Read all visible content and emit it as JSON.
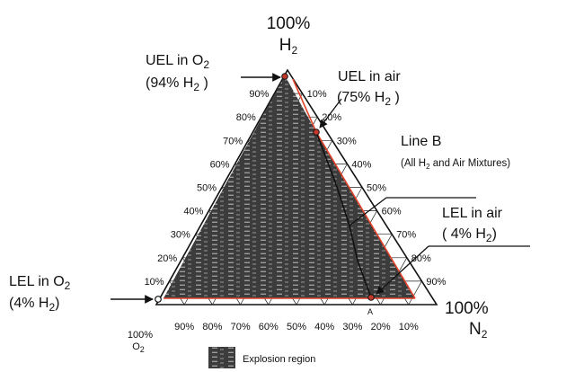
{
  "apex_top": {
    "pct": "100%",
    "species": "H",
    "sub": "2"
  },
  "apex_right": {
    "pct": "100%",
    "species": "N",
    "sub": "2"
  },
  "apex_left": {
    "pct": "100%",
    "species": "O",
    "sub": "2"
  },
  "left_ticks": [
    "90%",
    "80%",
    "70%",
    "60%",
    "50%",
    "40%",
    "30%",
    "20%",
    "10%"
  ],
  "right_ticks": [
    "10%",
    "20%",
    "30%",
    "40%",
    "50%",
    "60%",
    "70%",
    "80%",
    "90%"
  ],
  "bottom_ticks": [
    "90%",
    "80%",
    "70%",
    "60%",
    "50%",
    "40%",
    "30%",
    "20%",
    "10%"
  ],
  "annotations": {
    "uel_o2": {
      "line1": "UEL  in O",
      "line1_sub": "2",
      "line2_a": "(94% H",
      "line2_sub": "2",
      "line2_b": " )"
    },
    "uel_air": {
      "line1": "UEL  in air",
      "line2_a": "(75% H",
      "line2_sub": "2",
      "line2_b": " )"
    },
    "line_b": {
      "title": "Line B",
      "sub_a": "(All H",
      "sub_sub": "2",
      "sub_b": " and Air Mixtures)"
    },
    "lel_air": {
      "line1": "LEL  in air",
      "line2_a": "( 4% H",
      "line2_sub": "2",
      "line2_b": ")"
    },
    "lel_o2": {
      "line1": "LEL  in O",
      "line1_sub": "2",
      "line2_a": "(4% H",
      "line2_sub": "2",
      "line2_b": ")"
    },
    "point_a": "A"
  },
  "legend": {
    "label": "Explosion region"
  },
  "colors": {
    "explosion_fill": "#3c3c3c",
    "boundary": "#e2432b",
    "marker": "#c0392b"
  }
}
